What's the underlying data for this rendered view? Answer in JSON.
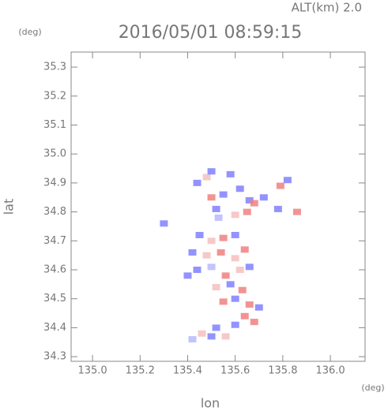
{
  "chart_data": {
    "type": "scatter",
    "title": "2016/05/01 08:59:15",
    "annotation": "ALT(km) 2.0",
    "y_unit": "(deg)",
    "x_unit": "(deg)",
    "x_label": "lon",
    "y_label": "lat",
    "xlim": [
      134.91,
      136.146
    ],
    "ylim": [
      34.284,
      35.352
    ],
    "xticks": [
      {
        "value": 135.0,
        "label": "135.0"
      },
      135.2,
      135.4,
      135.6,
      135.8,
      {
        "value": 136.0,
        "label": "136.0"
      }
    ],
    "yticks": [
      34.3,
      34.4,
      34.5,
      34.6,
      34.7,
      34.8,
      34.9,
      {
        "value": 35.0,
        "label": "35.0"
      },
      35.1,
      35.2,
      35.3
    ],
    "x": [
      135.44,
      135.48,
      135.5,
      135.58,
      135.5,
      135.52,
      135.55,
      135.53,
      135.62,
      135.66,
      135.65,
      135.6,
      135.68,
      135.72,
      135.79,
      135.82,
      135.78,
      135.86,
      135.3,
      135.45,
      135.5,
      135.55,
      135.6,
      135.42,
      135.48,
      135.54,
      135.6,
      135.64,
      135.44,
      135.5,
      135.56,
      135.62,
      135.66,
      135.52,
      135.58,
      135.63,
      135.55,
      135.6,
      135.66,
      135.7,
      135.64,
      135.68,
      135.6,
      135.52,
      135.46,
      135.5,
      135.42,
      135.56,
      135.4
    ],
    "y": [
      34.9,
      34.92,
      34.94,
      34.93,
      34.85,
      34.81,
      34.86,
      34.78,
      34.88,
      34.84,
      34.8,
      34.79,
      34.83,
      34.85,
      34.89,
      34.91,
      34.81,
      34.8,
      34.76,
      34.72,
      34.7,
      34.71,
      34.72,
      34.66,
      34.65,
      34.66,
      34.64,
      34.67,
      34.6,
      34.61,
      34.58,
      34.6,
      34.61,
      34.54,
      34.55,
      34.53,
      34.49,
      34.5,
      34.48,
      34.47,
      34.44,
      34.42,
      34.41,
      34.4,
      34.38,
      34.37,
      34.36,
      34.37,
      34.58
    ],
    "colors": [
      "#8080ff",
      "#f4c0c0",
      "#8080ff",
      "#8080ff",
      "#f08080",
      "#8080ff",
      "#8080ff",
      "#b8b8ff",
      "#8080ff",
      "#8080ff",
      "#f08080",
      "#f4c0c0",
      "#f08080",
      "#8080ff",
      "#f08080",
      "#8080ff",
      "#8080ff",
      "#f08080",
      "#8080ff",
      "#8080ff",
      "#f4c0c0",
      "#f08080",
      "#8080ff",
      "#8080ff",
      "#f4c0c0",
      "#f08080",
      "#f4c0c0",
      "#f08080",
      "#8080ff",
      "#b8b8ff",
      "#f08080",
      "#f4c0c0",
      "#8080ff",
      "#f4c0c0",
      "#8080ff",
      "#f08080",
      "#f08080",
      "#8080ff",
      "#f08080",
      "#8080ff",
      "#f08080",
      "#f08080",
      "#8080ff",
      "#8080ff",
      "#f4c0c0",
      "#8080ff",
      "#b8b8ff",
      "#f4c0c0",
      "#8080ff"
    ]
  }
}
